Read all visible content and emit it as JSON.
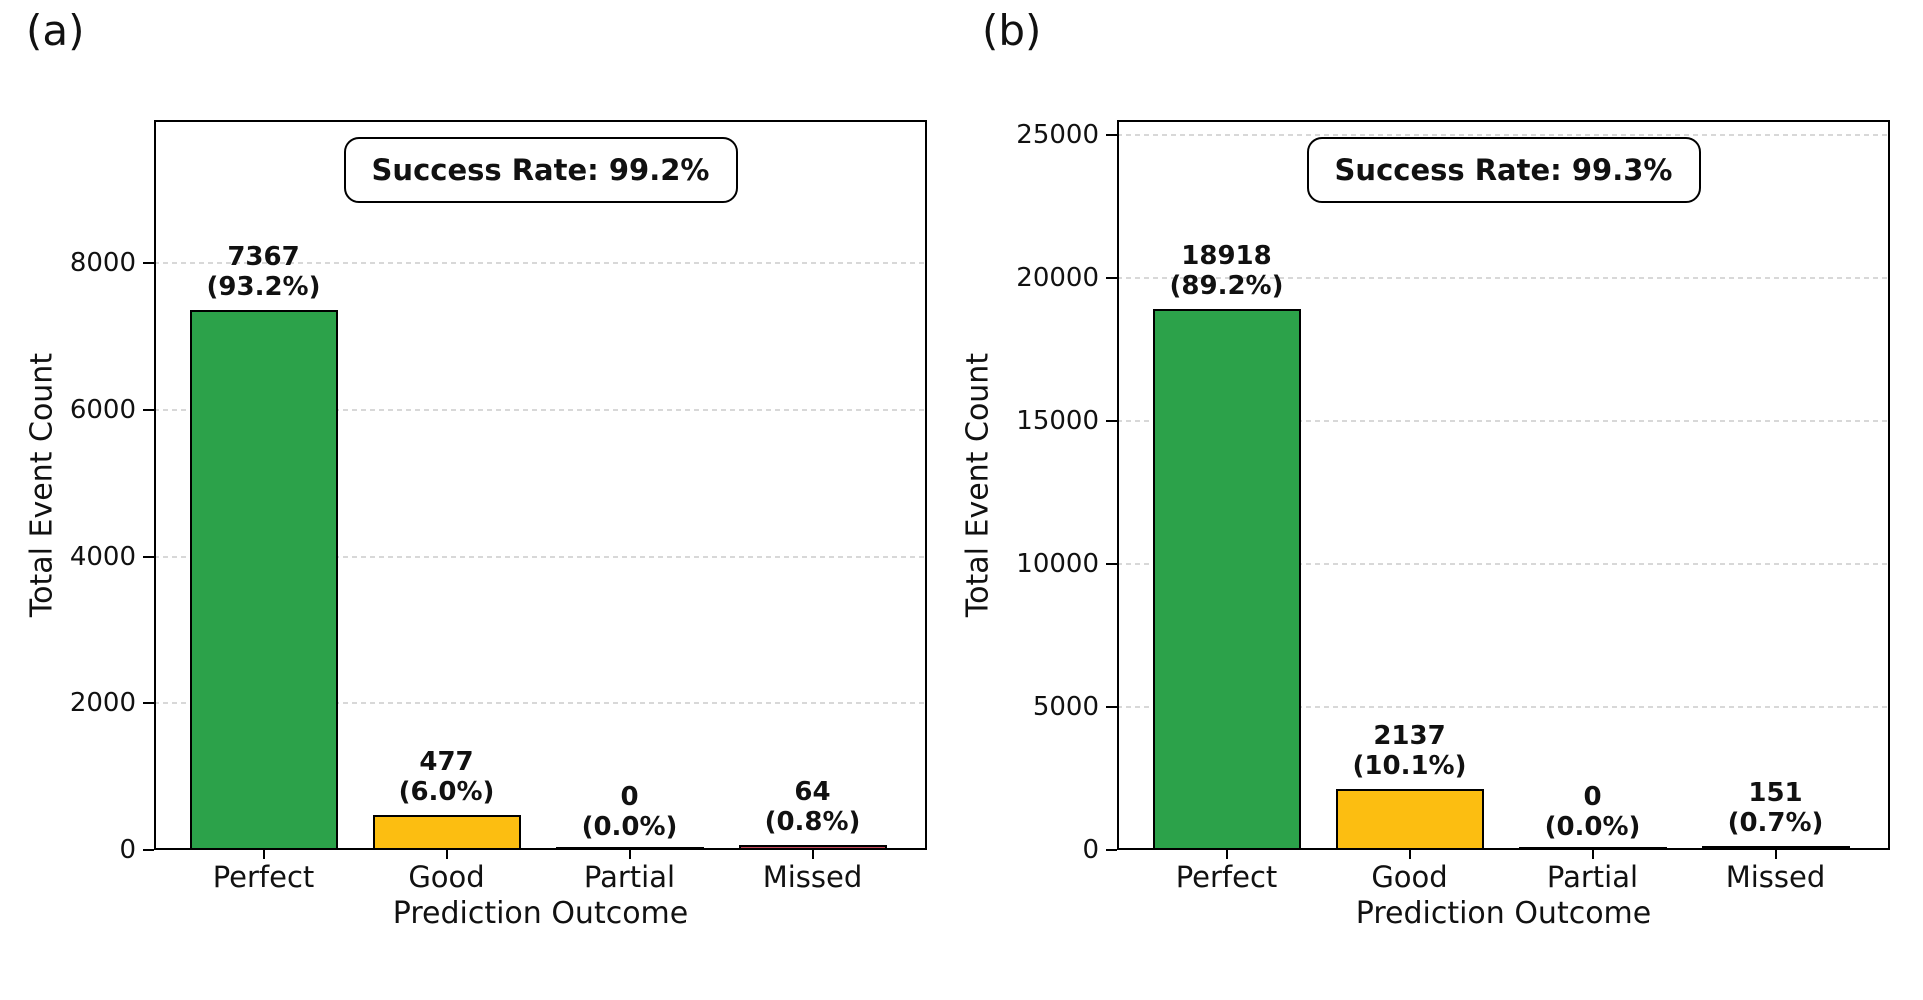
{
  "figure": {
    "background": "#ffffff",
    "grid_color": "#d8d8d8",
    "axis_color": "#000000",
    "bar_edge_color": "#000000"
  },
  "chart_data": [
    {
      "type": "bar",
      "panel_label": "(a)",
      "success_box_text": "Success Rate: 99.2%",
      "categories": [
        "Perfect",
        "Good",
        "Partial",
        "Missed"
      ],
      "values": [
        7367,
        477,
        0,
        64
      ],
      "count_labels": [
        "7367",
        "477",
        "0",
        "64"
      ],
      "percent_labels": [
        "(93.2%)",
        "(6.0%)",
        "(0.0%)",
        "(0.8%)"
      ],
      "bar_colors": [
        "#2ca24a",
        "#fcbe11",
        "#9e9e9e",
        "#c9485b"
      ],
      "xlabel": "Prediction Outcome",
      "ylabel": "Total Event Count",
      "yticks": [
        0,
        2000,
        4000,
        6000,
        8000
      ],
      "ylim": [
        0,
        9950
      ],
      "grid": "horizontal-dashed",
      "legend": "none"
    },
    {
      "type": "bar",
      "panel_label": "(b)",
      "success_box_text": "Success Rate: 99.3%",
      "categories": [
        "Perfect",
        "Good",
        "Partial",
        "Missed"
      ],
      "values": [
        18918,
        2137,
        0,
        151
      ],
      "count_labels": [
        "18918",
        "2137",
        "0",
        "151"
      ],
      "percent_labels": [
        "(89.2%)",
        "(10.1%)",
        "(0.0%)",
        "(0.7%)"
      ],
      "bar_colors": [
        "#2ca24a",
        "#fcbe11",
        "#9e9e9e",
        "#c9485b"
      ],
      "xlabel": "Prediction Outcome",
      "ylabel": "Total Event Count",
      "yticks": [
        0,
        5000,
        10000,
        15000,
        20000,
        25000
      ],
      "ylim": [
        0,
        25520
      ],
      "grid": "horizontal-dashed",
      "legend": "none"
    }
  ]
}
